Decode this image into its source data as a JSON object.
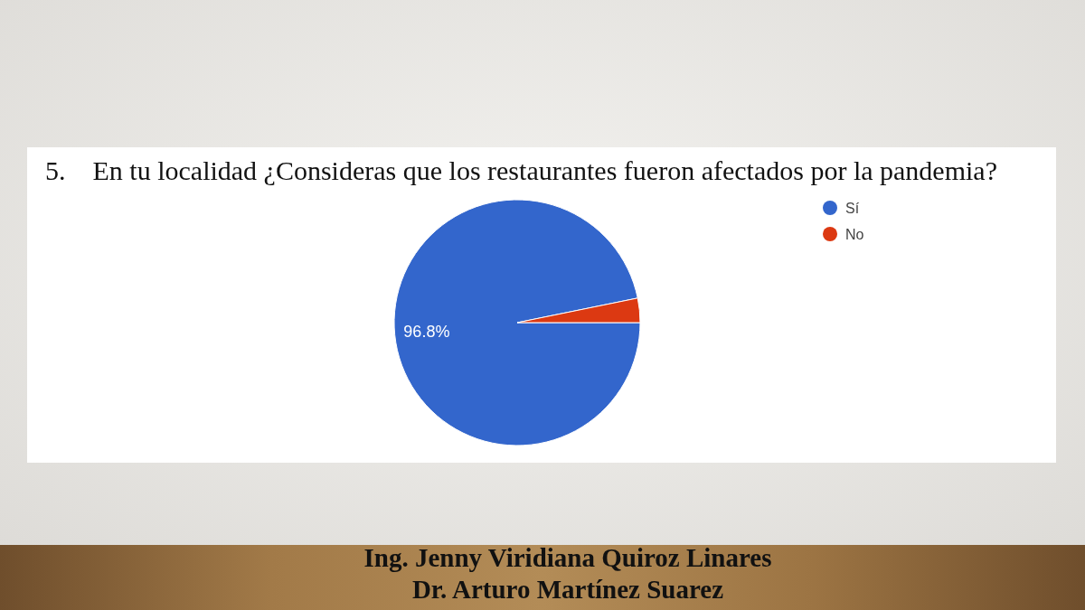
{
  "chart_data": {
    "type": "pie",
    "title": "5.    En tu localidad ¿Consideras que los restaurantes fueron afectados por la pandemia?",
    "categories": [
      "Sí",
      "No"
    ],
    "values": [
      96.8,
      3.2
    ],
    "colors": [
      "#3366cc",
      "#dc3912"
    ],
    "value_labels": [
      "96.8%",
      null
    ],
    "legend": "top right",
    "annotations": [
      "Ing. Jenny Viridiana Quiroz Linares",
      "Dr. Arturo Martínez Suarez"
    ]
  }
}
